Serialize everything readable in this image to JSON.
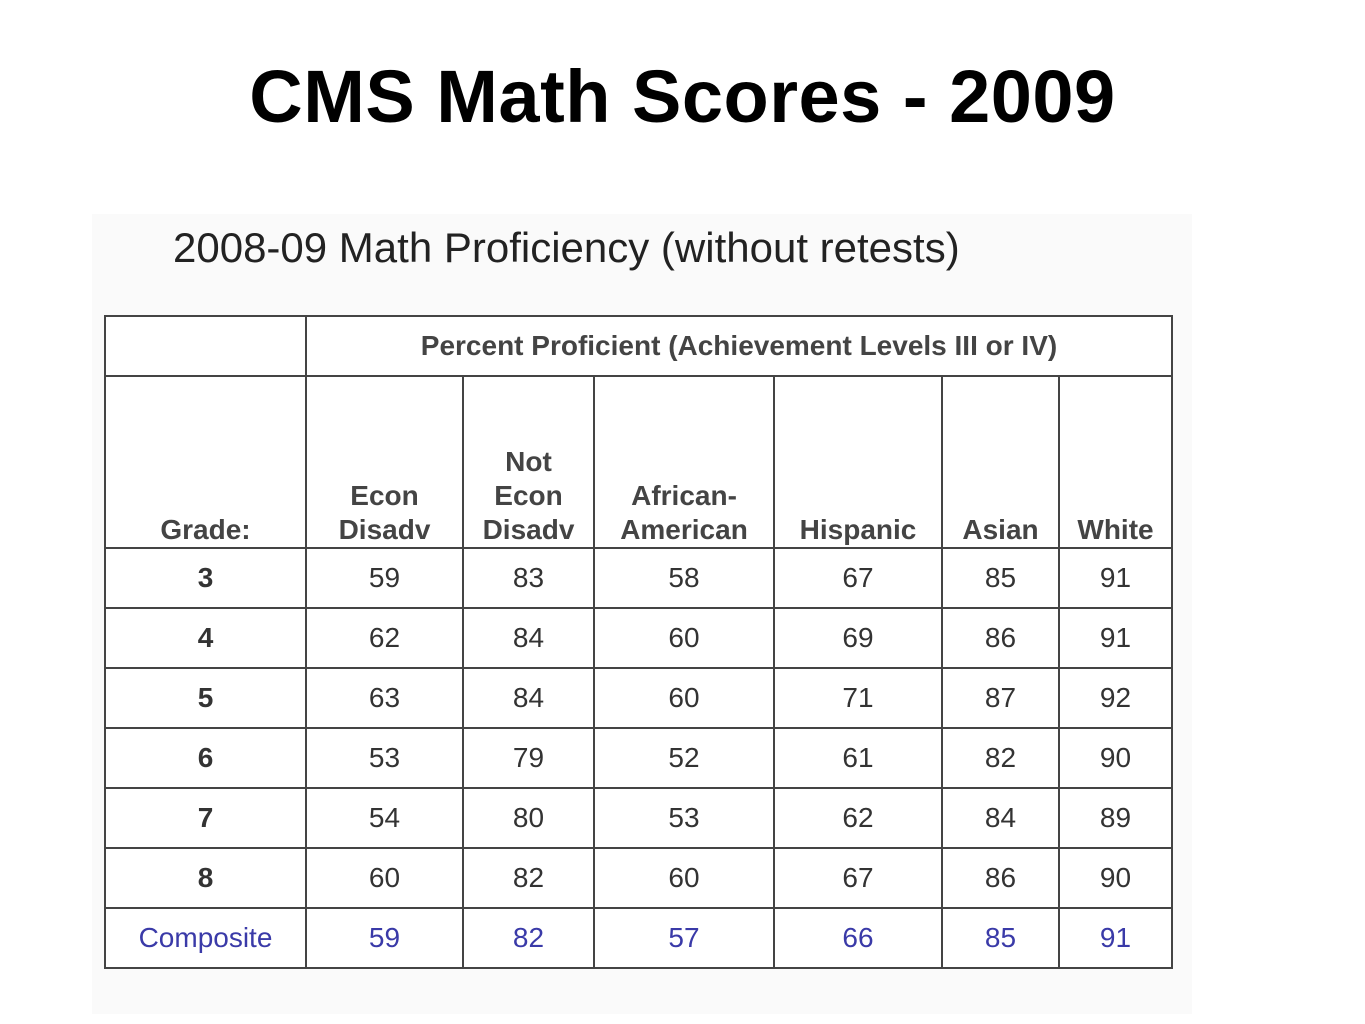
{
  "slide_title": "CMS Math Scores - 2009",
  "table_title": "2008-09 Math Proficiency (without retests)",
  "table": {
    "super_header": "Percent Proficient (Achievement Levels III or IV)",
    "grade_header": "Grade:",
    "columns": [
      [
        "Econ",
        "Disadv"
      ],
      [
        "Not",
        "Econ",
        "Disadv"
      ],
      [
        "African-",
        "American"
      ],
      [
        "Hispanic"
      ],
      [
        "Asian"
      ],
      [
        "White"
      ]
    ],
    "rows": [
      {
        "grade": "3",
        "values": [
          "59",
          "83",
          "58",
          "67",
          "85",
          "91"
        ]
      },
      {
        "grade": "4",
        "values": [
          "62",
          "84",
          "60",
          "69",
          "86",
          "91"
        ]
      },
      {
        "grade": "5",
        "values": [
          "63",
          "84",
          "60",
          "71",
          "87",
          "92"
        ]
      },
      {
        "grade": "6",
        "values": [
          "53",
          "79",
          "52",
          "61",
          "82",
          "90"
        ]
      },
      {
        "grade": "7",
        "values": [
          "54",
          "80",
          "53",
          "62",
          "84",
          "89"
        ]
      },
      {
        "grade": "8",
        "values": [
          "60",
          "82",
          "60",
          "67",
          "86",
          "90"
        ]
      }
    ],
    "composite": {
      "grade": "Composite",
      "values": [
        "59",
        "82",
        "57",
        "66",
        "85",
        "91"
      ]
    }
  },
  "colors": {
    "composite_text": "#3a3aa8",
    "border": "#444444"
  }
}
